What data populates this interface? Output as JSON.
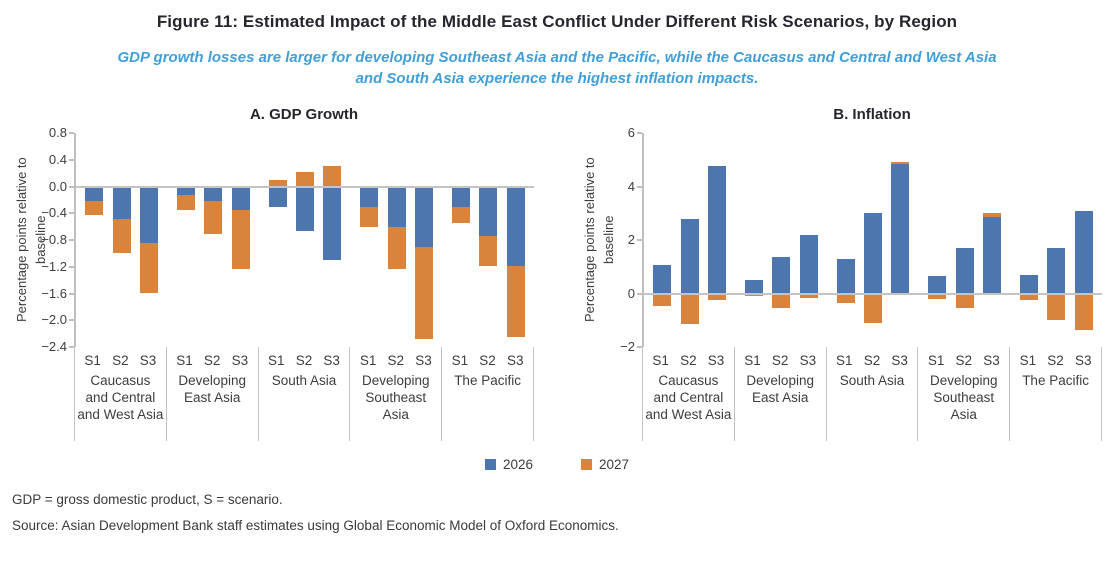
{
  "figure": {
    "title": "Figure 11: Estimated Impact of the Middle East Conflict Under Different Risk Scenarios, by Region",
    "subtitle": "GDP growth losses are larger for developing Southeast Asia and the Pacific, while the Caucasus and Central and West Asia and South Asia experience the highest inflation impacts.",
    "notes": [
      "GDP = gross domestic product, S = scenario.",
      "Source: Asian Development Bank staff estimates using Global Economic Model of Oxford Economics."
    ]
  },
  "legend": {
    "items": [
      {
        "label": "2026",
        "color": "#4d76ae"
      },
      {
        "label": "2027",
        "color": "#d9843c"
      }
    ]
  },
  "colors": {
    "bar_blue": "#4d76ae",
    "bar_orange": "#d9843c",
    "subtitle_blue": "#3f9fd9",
    "axis_gray": "#bfbfbf",
    "text_dark": "#3d3d3d"
  },
  "chart_data": [
    {
      "type": "bar",
      "stacked": true,
      "panel": "A. GDP Growth",
      "ylabel": "Percentage points relative to baseline",
      "ylim": [
        -2.4,
        0.8
      ],
      "grid": false,
      "legend_position": "bottom-center",
      "yticks": [
        {
          "label": "0.8",
          "value": 0.8
        },
        {
          "label": "0.4",
          "value": 0.4
        },
        {
          "label": "0.0",
          "value": 0.0
        },
        {
          "label": "−0.4",
          "value": -0.4
        },
        {
          "label": "−0.8",
          "value": -0.8
        },
        {
          "label": "−1.2",
          "value": -1.2
        },
        {
          "label": "−1.6",
          "value": -1.6
        },
        {
          "label": "−2.0",
          "value": -2.0
        },
        {
          "label": "−2.4",
          "value": -2.4
        }
      ],
      "categories": [
        "Caucasus\nand Central\nand West Asia",
        "Developing\nEast Asia",
        "South Asia",
        "Developing\nSoutheast\nAsia",
        "The Pacific"
      ],
      "scenarios": [
        "S1",
        "S2",
        "S3"
      ],
      "series": [
        {
          "name": "2026",
          "color": "#4d76ae",
          "values": [
            [
              -0.22,
              -0.49,
              -0.85
            ],
            [
              -0.13,
              -0.22,
              -0.35
            ],
            [
              -0.3,
              -0.66,
              -1.1
            ],
            [
              -0.3,
              -0.6,
              -0.91
            ],
            [
              -0.31,
              -0.74,
              -1.19
            ]
          ]
        },
        {
          "name": "2027",
          "color": "#d9843c",
          "values": [
            [
              -0.21,
              -0.51,
              -0.74
            ],
            [
              -0.22,
              -0.49,
              -0.89
            ],
            [
              0.09,
              0.22,
              0.3
            ],
            [
              -0.3,
              -0.64,
              -1.37
            ],
            [
              -0.24,
              -0.45,
              -1.06
            ]
          ]
        }
      ]
    },
    {
      "type": "bar",
      "stacked": true,
      "panel": "B. Inflation",
      "ylabel": "Percentage points relative to baseline",
      "ylim": [
        -2,
        6
      ],
      "grid": false,
      "legend_position": "bottom-center",
      "yticks": [
        {
          "label": "6",
          "value": 6
        },
        {
          "label": "4",
          "value": 4
        },
        {
          "label": "2",
          "value": 2
        },
        {
          "label": "0",
          "value": 0
        },
        {
          "label": "−2",
          "value": -2
        }
      ],
      "categories": [
        "Caucasus\nand Central\nand West Asia",
        "Developing\nEast Asia",
        "South Asia",
        "Developing\nSoutheast\nAsia",
        "The Pacific"
      ],
      "scenarios": [
        "S1",
        "S2",
        "S3"
      ],
      "series": [
        {
          "name": "2026",
          "color": "#4d76ae",
          "values": [
            [
              1.05,
              2.8,
              4.75
            ],
            [
              0.5,
              1.35,
              2.2
            ],
            [
              1.3,
              3.0,
              4.85
            ],
            [
              0.65,
              1.7,
              2.85
            ],
            [
              0.7,
              1.7,
              3.1
            ]
          ]
        },
        {
          "name": "2027",
          "color": "#d9843c",
          "values": [
            [
              -0.45,
              -1.15,
              -0.25
            ],
            [
              -0.1,
              -0.55,
              -0.15
            ],
            [
              -0.35,
              -1.1,
              0.07
            ],
            [
              -0.2,
              -0.55,
              0.15
            ],
            [
              -0.25,
              -1.0,
              -1.35
            ]
          ]
        }
      ]
    }
  ]
}
